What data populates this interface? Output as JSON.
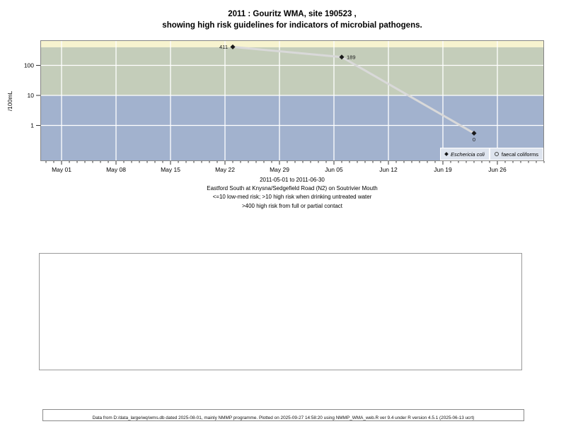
{
  "title": {
    "line1": "2011 : Gouritz WMA, site 190523 ,",
    "line2": "showing high risk guidelines for indicators of microbial pathogens."
  },
  "chart_data": {
    "type": "line",
    "y_scale": "log",
    "grid": true,
    "x_start_date": "2011-05-01",
    "x_end_date": "2011-06-30",
    "xtick_labels": [
      "May 01",
      "May 08",
      "May 15",
      "May 22",
      "May 29",
      "Jun 05",
      "Jun 12",
      "Jun 19",
      "Jun 26"
    ],
    "ylabel": "/100mL",
    "yticks": [
      100,
      10,
      1
    ],
    "ytick_labels": [
      "100",
      "10",
      "1"
    ],
    "ylim": [
      0.065,
      684
    ],
    "bands": [
      {
        "name": "high risk from full or partial contact",
        "above": 400,
        "color": "#f7f3cf"
      },
      {
        "name": "high risk when drinking untreated water",
        "from": 10,
        "to": 400,
        "color": "#c4cdba"
      },
      {
        "name": "low-med risk",
        "below": 10,
        "color": "#a2b2ce"
      }
    ],
    "series": [
      {
        "name": "Eschericia coli",
        "marker": "diamond-filled",
        "line_color": "#d9d9d9",
        "points": [
          {
            "date": "2011-05-23",
            "value": 411,
            "label": "411",
            "label_pos": "left"
          },
          {
            "date": "2011-06-06",
            "value": 189,
            "label": "189",
            "label_pos": "right"
          },
          {
            "date": "2011-06-23",
            "value": 0,
            "label": "0",
            "label_pos": "below"
          }
        ]
      },
      {
        "name": "faecal coliforms",
        "marker": "circle-open",
        "points": []
      }
    ],
    "legend_position": "bottom-right-inside",
    "legend": [
      {
        "marker": "diamond-filled",
        "label": "Eschericia coli"
      },
      {
        "marker": "circle-open",
        "label": "faecal coliforms"
      }
    ]
  },
  "caption": {
    "line1": "2011-05-01 to 2011-06-30",
    "line2": "Eastford South at Knysna/Sedgefield Road (N2) on Soutrivier Mouth",
    "line3": "<=10 low-med risk; >10 high risk when drinking untreated water",
    "line4": ">400 high risk from full or partial contact"
  },
  "footer": "Data from D:/data_large/wq/wms.db dated 2025-08-01, mainly NMMP programme. Plotted on 2025-09-27 14:58:20 using NMMP_WMA_web.R ver 9.4 under R version 4.5.1 (2025-06-13 ucrt)"
}
